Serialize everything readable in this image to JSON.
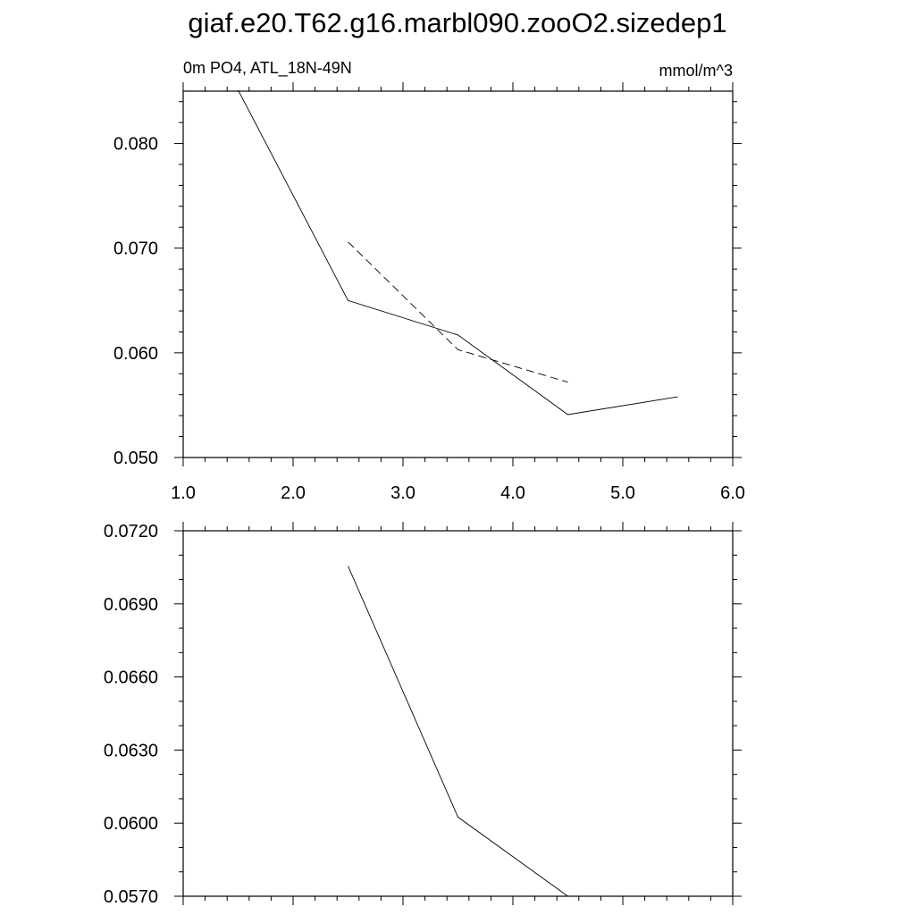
{
  "title": "giaf.e20.T62.g16.marbl090.zooO2.sizedep1",
  "subtitle_left": "0m PO4, ATL_18N-49N",
  "subtitle_right": "mmol/m^3",
  "chart_data": [
    {
      "type": "line",
      "xlim": [
        1.0,
        6.0
      ],
      "ylim": [
        0.05,
        0.085
      ],
      "x_ticks": [
        1.0,
        2.0,
        3.0,
        4.0,
        5.0,
        6.0
      ],
      "x_tick_labels": [
        "1.0",
        "2.0",
        "3.0",
        "4.0",
        "5.0",
        "6.0"
      ],
      "y_ticks": [
        0.05,
        0.06,
        0.07,
        0.08
      ],
      "y_tick_labels": [
        "0.050",
        "0.060",
        "0.070",
        "0.080"
      ],
      "grid": false,
      "series": [
        {
          "style": "solid",
          "color": "#000000",
          "x": [
            1.5,
            2.5,
            3.5,
            4.5,
            5.5
          ],
          "y": [
            0.0851,
            0.065,
            0.0617,
            0.0541,
            0.0558
          ]
        },
        {
          "style": "dashed",
          "color": "#000000",
          "x": [
            2.5,
            3.5,
            4.5
          ],
          "y": [
            0.0706,
            0.0603,
            0.0572
          ]
        }
      ]
    },
    {
      "type": "line",
      "xlim": [
        1.0,
        6.0
      ],
      "ylim": [
        0.057,
        0.072
      ],
      "x_ticks": [
        1.0,
        2.0,
        3.0,
        4.0,
        5.0,
        6.0
      ],
      "y_ticks": [
        0.057,
        0.06,
        0.063,
        0.066,
        0.069,
        0.072
      ],
      "y_tick_labels": [
        "0.0570",
        "0.0600",
        "0.0630",
        "0.0660",
        "0.0690",
        "0.0720"
      ],
      "grid": false,
      "series": [
        {
          "style": "solid",
          "color": "#000000",
          "x": [
            2.5,
            3.5,
            4.5
          ],
          "y": [
            0.07055,
            0.06025,
            0.057
          ]
        }
      ]
    }
  ]
}
